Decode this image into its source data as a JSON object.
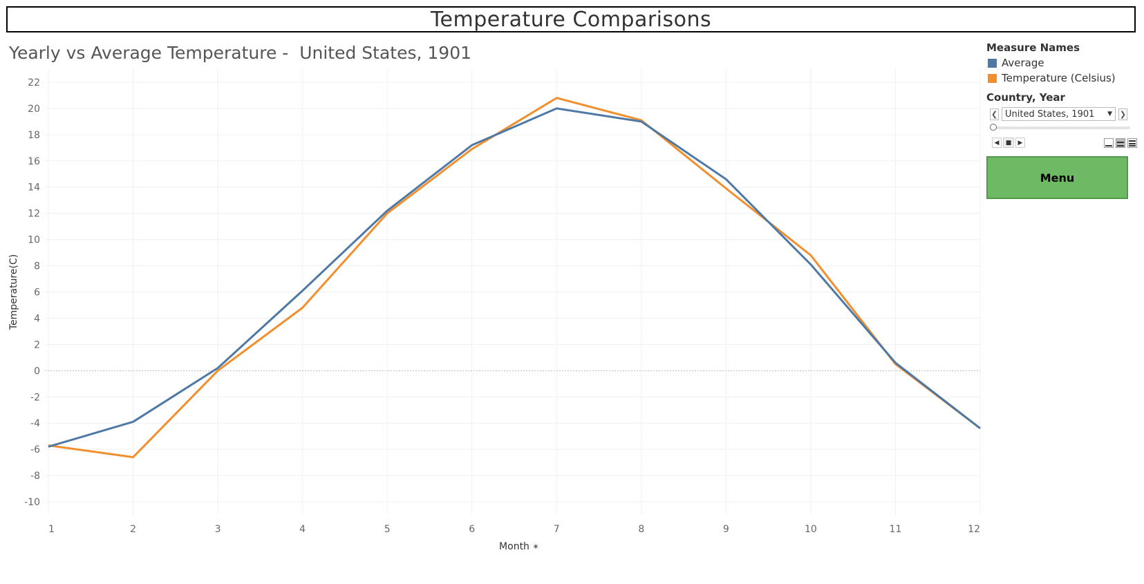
{
  "dashboard_title": "Temperature Comparisons",
  "sheet_title": "Yearly vs Average Temperature -  United States, 1901",
  "legend": {
    "title": "Measure Names",
    "items": [
      {
        "label": "Average",
        "color": "#4e79a7"
      },
      {
        "label": "Temperature (Celsius)",
        "color": "#f28e2b"
      }
    ]
  },
  "filter": {
    "title": "Country, Year",
    "selected": "United States, 1901",
    "prev_icon": "chevron-left-icon",
    "next_icon": "chevron-right-icon",
    "dropdown_icon": "caret-down-icon"
  },
  "menu_button": {
    "label": "Menu",
    "color": "#6db964"
  },
  "chart_data": {
    "type": "line",
    "title": "Yearly vs Average Temperature -  United States, 1901",
    "xlabel": "Month",
    "ylabel": "Temperature(C)",
    "x": [
      1,
      2,
      3,
      4,
      5,
      6,
      7,
      8,
      9,
      10,
      11,
      12
    ],
    "xlim": [
      1,
      12
    ],
    "ylim": [
      -11,
      23
    ],
    "yticks": [
      22,
      20,
      18,
      16,
      14,
      12,
      10,
      8,
      6,
      4,
      2,
      0,
      -2,
      -4,
      -6,
      -8,
      -10
    ],
    "xticks": [
      1,
      2,
      3,
      4,
      5,
      6,
      7,
      8,
      9,
      10,
      11,
      12
    ],
    "grid": true,
    "legend_position": "right",
    "series": [
      {
        "name": "Average",
        "color": "#4e79a7",
        "values": [
          -5.8,
          -3.9,
          0.2,
          6.1,
          12.2,
          17.2,
          20.0,
          19.0,
          14.6,
          8.1,
          0.6,
          -4.4
        ]
      },
      {
        "name": "Temperature (Celsius)",
        "color": "#f28e2b",
        "values": [
          -5.7,
          -6.6,
          0.0,
          4.8,
          12.0,
          16.9,
          20.8,
          19.1,
          13.9,
          8.8,
          0.5,
          -4.4
        ]
      }
    ]
  }
}
